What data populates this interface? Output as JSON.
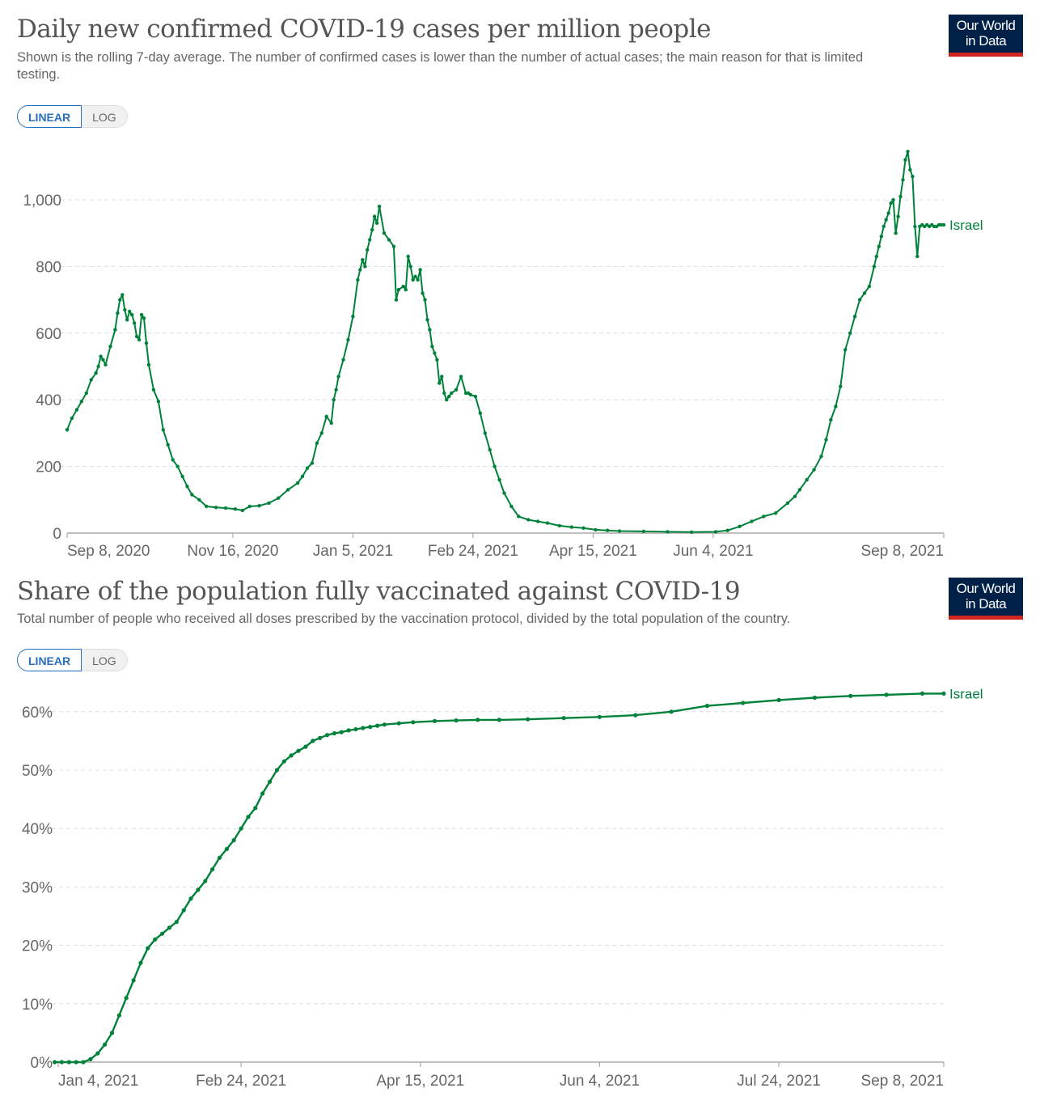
{
  "logo": {
    "line1": "Our World",
    "line2": "in Data"
  },
  "toggle": {
    "linear": "LINEAR",
    "log": "LOG"
  },
  "colors": {
    "series": "#00813a",
    "grid": "#dddddd",
    "axis": "#aaaaaa",
    "text": "#666666",
    "logo_bg": "#002147",
    "logo_bar": "#ce261e",
    "toggle_active": "#2a6ebb"
  },
  "chart_data": [
    {
      "type": "line",
      "title": "Daily new confirmed COVID-19 cases per million people",
      "subtitle": "Shown is the rolling 7-day average. The number of confirmed cases is lower than the number of actual cases; the main reason for that is limited testing.",
      "xlabel": "",
      "ylabel": "",
      "x_unit": "days since Sep 8, 2020",
      "xlim": [
        0,
        365
      ],
      "ylim": [
        0,
        1150
      ],
      "grid": true,
      "yticks": [
        0,
        200,
        400,
        600,
        800,
        1000
      ],
      "ytick_labels": [
        "0",
        "200",
        "400",
        "600",
        "800",
        "1,000"
      ],
      "xticks": [
        0,
        69,
        119,
        169,
        219,
        269,
        365
      ],
      "xtick_labels": [
        "Sep 8, 2020",
        "Nov 16, 2020",
        "Jan 5, 2021",
        "Feb 24, 2021",
        "Apr 15, 2021",
        "Jun 4, 2021",
        "Sep 8, 2021"
      ],
      "series": [
        {
          "name": "Israel",
          "x": [
            0,
            2,
            4,
            6,
            8,
            10,
            12,
            13,
            14,
            15,
            16,
            18,
            20,
            21,
            22,
            23,
            24,
            25,
            26,
            27,
            28,
            29,
            30,
            31,
            32,
            33,
            34,
            36,
            38,
            40,
            42,
            44,
            46,
            48,
            50,
            52,
            55,
            58,
            62,
            66,
            70,
            73,
            76,
            80,
            84,
            88,
            92,
            96,
            98,
            100,
            102,
            104,
            106,
            108,
            110,
            111,
            112,
            113,
            115,
            117,
            119,
            121,
            122,
            123,
            124,
            125,
            126,
            127,
            128,
            129,
            130,
            132,
            134,
            136,
            137,
            138,
            140,
            141,
            142,
            143,
            144,
            145,
            146,
            147,
            148,
            149,
            150,
            151,
            152,
            153,
            154,
            155,
            156,
            157,
            158,
            159,
            160,
            162,
            164,
            166,
            167,
            168,
            170,
            172,
            174,
            176,
            178,
            180,
            182,
            185,
            188,
            192,
            196,
            200,
            205,
            210,
            215,
            220,
            225,
            230,
            240,
            250,
            260,
            270,
            275,
            280,
            285,
            290,
            295,
            300,
            303,
            305,
            308,
            311,
            314,
            316,
            318,
            320,
            322,
            324,
            326,
            328,
            330,
            332,
            334,
            336,
            337,
            338,
            339,
            340,
            341,
            342,
            343,
            344,
            345,
            346,
            347,
            348,
            349,
            350,
            351,
            352,
            353,
            354,
            355,
            356,
            357,
            358,
            359,
            360,
            361,
            362,
            363,
            364,
            365
          ],
          "values": [
            310,
            345,
            370,
            395,
            420,
            460,
            480,
            500,
            530,
            520,
            505,
            560,
            610,
            660,
            700,
            715,
            670,
            640,
            665,
            655,
            630,
            590,
            580,
            655,
            645,
            570,
            505,
            430,
            395,
            310,
            265,
            220,
            200,
            170,
            140,
            115,
            100,
            80,
            77,
            75,
            72,
            68,
            80,
            82,
            90,
            105,
            130,
            150,
            170,
            195,
            210,
            270,
            300,
            350,
            330,
            400,
            430,
            470,
            520,
            580,
            650,
            760,
            790,
            820,
            800,
            850,
            880,
            910,
            950,
            930,
            980,
            900,
            880,
            860,
            700,
            730,
            740,
            730,
            830,
            800,
            760,
            770,
            760,
            790,
            720,
            700,
            640,
            610,
            560,
            540,
            520,
            450,
            470,
            420,
            400,
            410,
            420,
            430,
            470,
            420,
            420,
            415,
            410,
            360,
            300,
            250,
            200,
            160,
            120,
            80,
            50,
            40,
            35,
            30,
            22,
            18,
            15,
            10,
            8,
            6,
            5,
            4,
            3,
            4,
            8,
            20,
            35,
            50,
            60,
            90,
            110,
            130,
            160,
            190,
            230,
            280,
            340,
            380,
            440,
            550,
            600,
            650,
            700,
            720,
            740,
            800,
            830,
            860,
            890,
            920,
            940,
            960,
            990,
            1000,
            900,
            950,
            1010,
            1060,
            1120,
            1145,
            1090,
            1070,
            920,
            830,
            920,
            925,
            920,
            925,
            920,
            925,
            920,
            920,
            925,
            925,
            925
          ]
        }
      ]
    },
    {
      "type": "line",
      "title": "Share of the population fully vaccinated against COVID-19",
      "subtitle": "Total number of people who received all doses prescribed by the vaccination protocol, divided by the total population of the country.",
      "xlabel": "",
      "ylabel": "",
      "x_unit": "days since Jan 4, 2021",
      "xlim": [
        0,
        247
      ],
      "ylim": [
        0,
        65
      ],
      "grid": true,
      "yticks": [
        0,
        10,
        20,
        30,
        40,
        50,
        60
      ],
      "ytick_labels": [
        "0%",
        "10%",
        "20%",
        "30%",
        "40%",
        "50%",
        "60%"
      ],
      "xticks": [
        0,
        51,
        101,
        151,
        201,
        247
      ],
      "xtick_labels": [
        "Jan 4, 2021",
        "Feb 24, 2021",
        "Apr 15, 2021",
        "Jun 4, 2021",
        "Jul 24, 2021",
        "Sep 8, 2021"
      ],
      "series": [
        {
          "name": "Israel",
          "x": [
            -1,
            1,
            3,
            5,
            7,
            9,
            11,
            13,
            15,
            17,
            19,
            21,
            23,
            25,
            27,
            29,
            31,
            33,
            35,
            37,
            39,
            41,
            43,
            45,
            47,
            49,
            51,
            53,
            55,
            57,
            59,
            61,
            63,
            65,
            67,
            69,
            71,
            73,
            75,
            77,
            79,
            81,
            83,
            85,
            87,
            89,
            91,
            95,
            99,
            105,
            111,
            117,
            123,
            131,
            141,
            151,
            161,
            171,
            181,
            191,
            201,
            211,
            221,
            231,
            241,
            247
          ],
          "values": [
            0,
            0,
            0,
            0,
            0,
            0.5,
            1.5,
            3,
            5,
            8,
            11,
            14,
            17,
            19.5,
            21,
            22,
            23,
            24,
            26,
            28,
            29.5,
            31,
            33,
            35,
            36.5,
            38,
            40,
            42,
            43.5,
            46,
            48,
            50,
            51.5,
            52.5,
            53.3,
            54,
            55,
            55.5,
            56,
            56.3,
            56.5,
            56.8,
            57,
            57.2,
            57.4,
            57.6,
            57.8,
            58.0,
            58.2,
            58.4,
            58.5,
            58.6,
            58.6,
            58.7,
            58.9,
            59.1,
            59.4,
            60.0,
            61.0,
            61.5,
            62.0,
            62.4,
            62.7,
            62.9,
            63.1,
            63.1
          ]
        }
      ]
    }
  ]
}
